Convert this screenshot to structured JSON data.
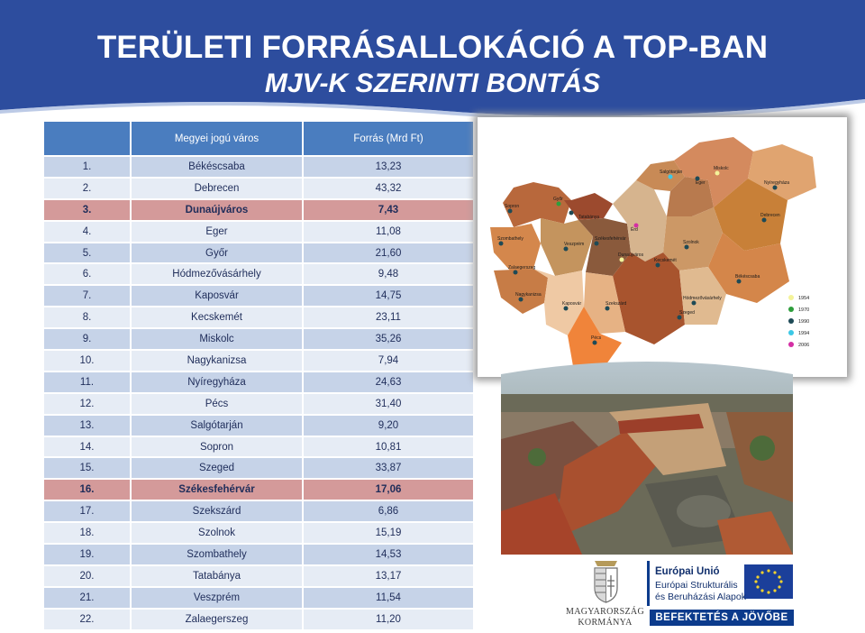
{
  "title": {
    "line1": "TERÜLETI FORRÁSALLOKÁCIÓ A TOP-BAN",
    "line2": "MJV-K SZERINTI BONTÁS"
  },
  "table": {
    "headers": [
      "",
      "Megyei jogú város",
      "Forrás (Mrd Ft)"
    ],
    "rows": [
      {
        "rank": "1.",
        "city": "Békéscsaba",
        "value": "13,23",
        "highlight": false
      },
      {
        "rank": "2.",
        "city": "Debrecen",
        "value": "43,32",
        "highlight": false
      },
      {
        "rank": "3.",
        "city": "Dunaújváros",
        "value": "7,43",
        "highlight": true
      },
      {
        "rank": "4.",
        "city": "Eger",
        "value": "11,08",
        "highlight": false
      },
      {
        "rank": "5.",
        "city": "Győr",
        "value": "21,60",
        "highlight": false
      },
      {
        "rank": "6.",
        "city": "Hódmezővásárhely",
        "value": "9,48",
        "highlight": false
      },
      {
        "rank": "7.",
        "city": "Kaposvár",
        "value": "14,75",
        "highlight": false
      },
      {
        "rank": "8.",
        "city": "Kecskemét",
        "value": "23,11",
        "highlight": false
      },
      {
        "rank": "9.",
        "city": "Miskolc",
        "value": "35,26",
        "highlight": false
      },
      {
        "rank": "10.",
        "city": "Nagykanizsa",
        "value": "7,94",
        "highlight": false
      },
      {
        "rank": "11.",
        "city": "Nyíregyháza",
        "value": "24,63",
        "highlight": false
      },
      {
        "rank": "12.",
        "city": "Pécs",
        "value": "31,40",
        "highlight": false
      },
      {
        "rank": "13.",
        "city": "Salgótarján",
        "value": "9,20",
        "highlight": false
      },
      {
        "rank": "14.",
        "city": "Sopron",
        "value": "10,81",
        "highlight": false
      },
      {
        "rank": "15.",
        "city": "Szeged",
        "value": "33,87",
        "highlight": false
      },
      {
        "rank": "16.",
        "city": "Székesfehérvár",
        "value": "17,06",
        "highlight": true
      },
      {
        "rank": "17.",
        "city": "Szekszárd",
        "value": "6,86",
        "highlight": false
      },
      {
        "rank": "18.",
        "city": "Szolnok",
        "value": "15,19",
        "highlight": false
      },
      {
        "rank": "19.",
        "city": "Szombathely",
        "value": "14,53",
        "highlight": false
      },
      {
        "rank": "20.",
        "city": "Tatabánya",
        "value": "13,17",
        "highlight": false
      },
      {
        "rank": "21.",
        "city": "Veszprém",
        "value": "11,54",
        "highlight": false
      },
      {
        "rank": "22.",
        "city": "Zalaegerszeg",
        "value": "11,20",
        "highlight": false
      }
    ]
  },
  "map": {
    "city_labels": [
      "Sopron",
      "Győr",
      "Tatabánya",
      "Salgótarján",
      "Miskolc",
      "Eger",
      "Nyíregyháza",
      "Debrecen",
      "Szombathely",
      "Veszprém",
      "Székesfehérvár",
      "Érd",
      "Szolnok",
      "Dunaújváros",
      "Kecskemét",
      "Zalaegerszeg",
      "Békéscsaba",
      "Nagykanizsa",
      "Kaposvár",
      "Szekszárd",
      "Hódmezővásárhely",
      "Szeged",
      "Pécs"
    ],
    "legend": [
      {
        "label": "1954",
        "color": "#f4f39a"
      },
      {
        "label": "1970",
        "color": "#2e9e3c"
      },
      {
        "label": "1990",
        "color": "#1e4a56"
      },
      {
        "label": "1994",
        "color": "#3cc8e6"
      },
      {
        "label": "2006",
        "color": "#d42fa4"
      }
    ]
  },
  "logos": {
    "gov_line1": "MAGYARORSZÁG",
    "gov_line2": "KORMÁNYA",
    "eu_line1": "Európai Unió",
    "eu_line2": "Európai Strukturális",
    "eu_line3": "és Beruházási Alapok",
    "banner": "BEFEKTETÉS A JÖVŐBE"
  },
  "colors": {
    "banner": "#2d4d9e",
    "header": "#4a7dbf",
    "row_odd": "#c6d3e8",
    "row_even": "#e6ecf5",
    "highlight": "#d49a9a"
  }
}
